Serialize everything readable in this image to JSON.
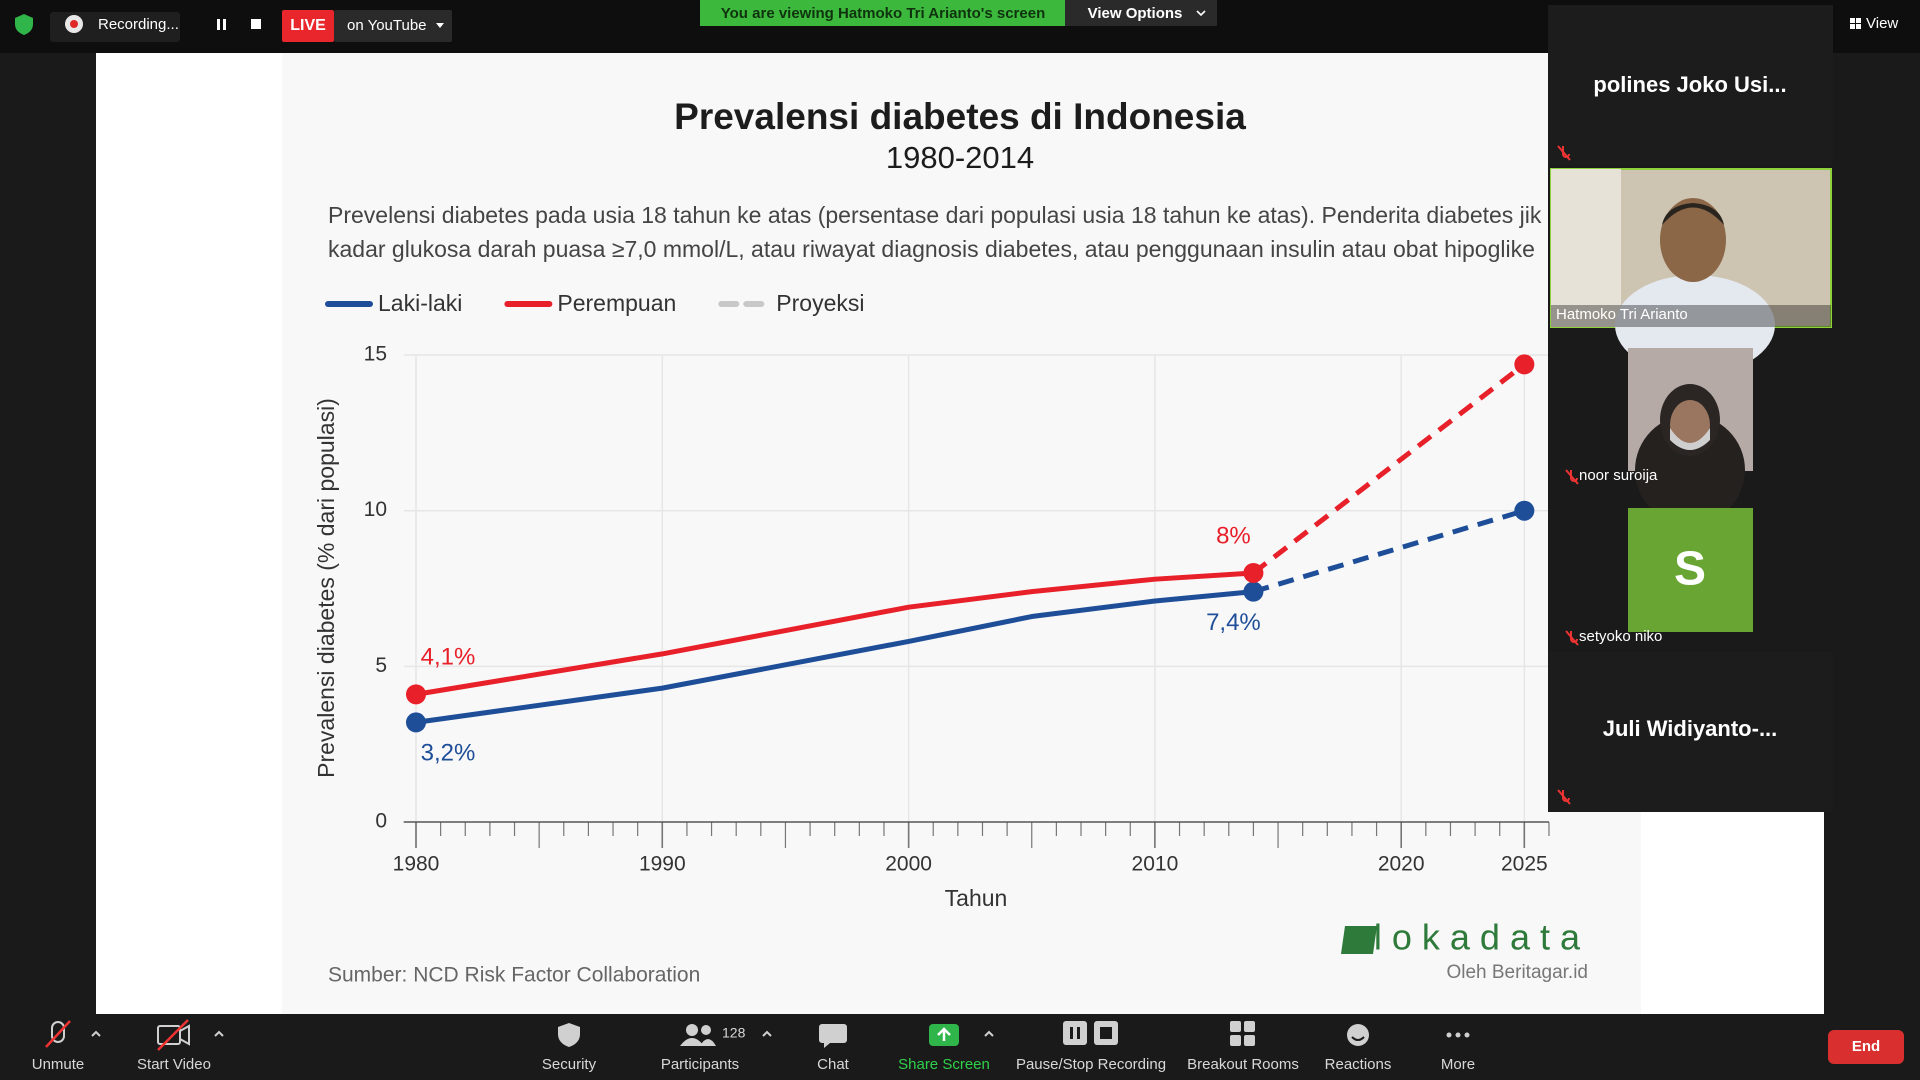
{
  "top_bar": {
    "recording": "Recording...",
    "live": "LIVE",
    "stream_target": "on YouTube",
    "viewing_banner": "You are viewing Hatmoko Tri Arianto's screen",
    "view_options": "View Options",
    "view": "View"
  },
  "chart_data": {
    "type": "line",
    "title": "Prevalensi diabetes di Indonesia",
    "subtitle": "1980-2014",
    "description": [
      "Prevelensi diabetes pada usia 18 tahun ke atas (persentase dari populasi usia 18 tahun ke atas). Penderita diabetes jik",
      "kadar glukosa darah puasa ≥7,0 mmol/L, atau riwayat diagnosis diabetes, atau penggunaan insulin atau obat hipoglike"
    ],
    "x_label": "Tahun",
    "y_label": "Prevalensi diabetes (% dari populasi)",
    "source": "Sumber:  NCD Risk Factor Collaboration",
    "brand": "lokadata",
    "brand_byline": "Oleh Beritagar.id",
    "x": [
      1980,
      1990,
      2000,
      2005,
      2010,
      2014,
      2025
    ],
    "xlim": [
      1979.5,
      2026
    ],
    "xticks": [
      1980,
      1990,
      2000,
      2010,
      2020,
      2025
    ],
    "ylim": [
      0,
      15
    ],
    "yticks": [
      0,
      5,
      10,
      15
    ],
    "grid": true,
    "series": [
      {
        "name": "Laki-laki",
        "color": "#1f4e99",
        "values": [
          3.2,
          4.3,
          5.8,
          6.6,
          7.1,
          7.4,
          null
        ],
        "value_labels": [
          "3,2%",
          null,
          null,
          null,
          null,
          "7,4%",
          null
        ],
        "projection_values": [
          null,
          null,
          null,
          null,
          null,
          7.4,
          10
        ]
      },
      {
        "name": "Perempuan",
        "color": "#e8202a",
        "values": [
          4.1,
          5.4,
          6.9,
          7.4,
          7.8,
          8.0,
          null
        ],
        "value_labels": [
          "4,1%",
          null,
          null,
          null,
          null,
          "8%",
          null
        ],
        "projection_values": [
          null,
          null,
          null,
          null,
          null,
          8.0,
          14.7
        ]
      }
    ],
    "projection_legend": {
      "name": "Proyeksi",
      "color": "#c8c8c8"
    }
  },
  "participants_panel": {
    "tiles": [
      {
        "name": "polines Joko Usi..."
      },
      {
        "name": "Hatmoko Tri Arianto"
      },
      {
        "name": "noor suroija"
      },
      {
        "avatar": "S",
        "name": "setyoko niko"
      },
      {
        "name": "Juli  Widiyanto-..."
      }
    ]
  },
  "toolbar": {
    "unmute": "Unmute",
    "start_video": "Start Video",
    "security": "Security",
    "participants": "Participants",
    "participants_count": 128,
    "chat": "Chat",
    "share_screen": "Share Screen",
    "recording": "Pause/Stop Recording",
    "breakout_rooms": "Breakout Rooms",
    "reactions": "Reactions",
    "more": "More",
    "end": "End"
  }
}
